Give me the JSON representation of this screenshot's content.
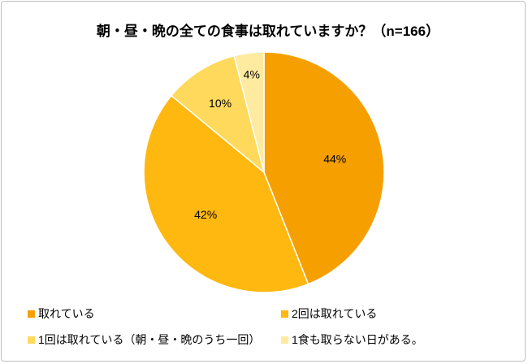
{
  "chart_data": {
    "type": "pie",
    "title": "朝・昼・晩の全ての食事は取れていますか？（n=166）",
    "categories": [
      "取れている",
      "2回は取れている",
      "1回は取れている（朝・昼・晩のうち一回）",
      "1食も取らない日がある。"
    ],
    "values": [
      44,
      42,
      10,
      4
    ],
    "data_labels": [
      "44%",
      "42%",
      "10%",
      "4%"
    ],
    "colors": [
      "#F5A000",
      "#FFB80F",
      "#FFD95C",
      "#FFEBA0"
    ],
    "start": "top",
    "direction": "clockwise",
    "legend_position": "bottom"
  }
}
